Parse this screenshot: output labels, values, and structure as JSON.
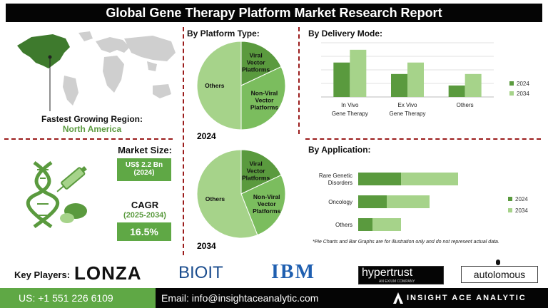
{
  "header": {
    "title": "Global Gene Therapy Platform Market Research Report"
  },
  "left_panel": {
    "fastest_growing_label": "Fastest Growing Region:",
    "fastest_growing_value": "North America",
    "market_size_label": "Market Size:",
    "market_size_value": "US$ 2.2 Bn",
    "market_size_year": "(2024)",
    "cagr_label": "CAGR",
    "cagr_period": "(2025-2034)",
    "cagr_value": "16.5%"
  },
  "platform_section": {
    "title": "By Platform Type:",
    "year_2024": "2024",
    "year_2034": "2034"
  },
  "delivery_section": {
    "title": "By  Delivery Mode:"
  },
  "application_section": {
    "title": "By Application:"
  },
  "note": "*Pie Charts and Bar Graphs are for illustration only and do not represent actual data.",
  "key_players": {
    "label": "Key Players:",
    "logos": [
      "LONZA",
      "BIOIT",
      "IBM",
      "hypertrust",
      "autolomous"
    ],
    "hypertrust_sub": "AN EXIUM COMPANY"
  },
  "footer": {
    "phone": "US: +1 551 226 6109",
    "email": "Email: info@insightaceanalytic.com",
    "brand": "INSIGHT ACE ANALYTIC"
  },
  "colors": {
    "dark_green": "#5a9a3e",
    "light_green": "#a6d38a",
    "mid_green": "#7bbd5e",
    "accent_red": "#9b1c1c"
  },
  "chart_data": [
    {
      "type": "pie",
      "title": "2024",
      "labels": [
        "Viral Vector Platforms",
        "Non-Viral Vector Platforms",
        "Others"
      ],
      "values": [
        18,
        32,
        50
      ]
    },
    {
      "type": "pie",
      "title": "2034",
      "labels": [
        "Viral Vector Platforms",
        "Non-Viral Vector Platforms",
        "Others"
      ],
      "values": [
        18,
        26,
        56
      ]
    },
    {
      "type": "bar",
      "title": "By  Delivery Mode:",
      "categories": [
        "In Vivo Gene Therapy",
        "Ex Vivo Gene Therapy",
        "Others"
      ],
      "series": [
        {
          "name": "2024",
          "values": [
            54,
            36,
            18
          ]
        },
        {
          "name": "2034",
          "values": [
            74,
            54,
            36
          ]
        }
      ],
      "ylim": [
        0,
        85
      ],
      "grid": true,
      "legend": "right"
    },
    {
      "type": "bar",
      "orientation": "horizontal",
      "stacked": true,
      "title": "By Application:",
      "categories": [
        "Rare Genetic Disorders",
        "Oncology",
        "Others"
      ],
      "series": [
        {
          "name": "2024",
          "values": [
            30,
            20,
            10
          ]
        },
        {
          "name": "2034",
          "values": [
            40,
            30,
            20
          ]
        }
      ],
      "xlim": [
        0,
        100
      ],
      "legend": "right"
    }
  ]
}
